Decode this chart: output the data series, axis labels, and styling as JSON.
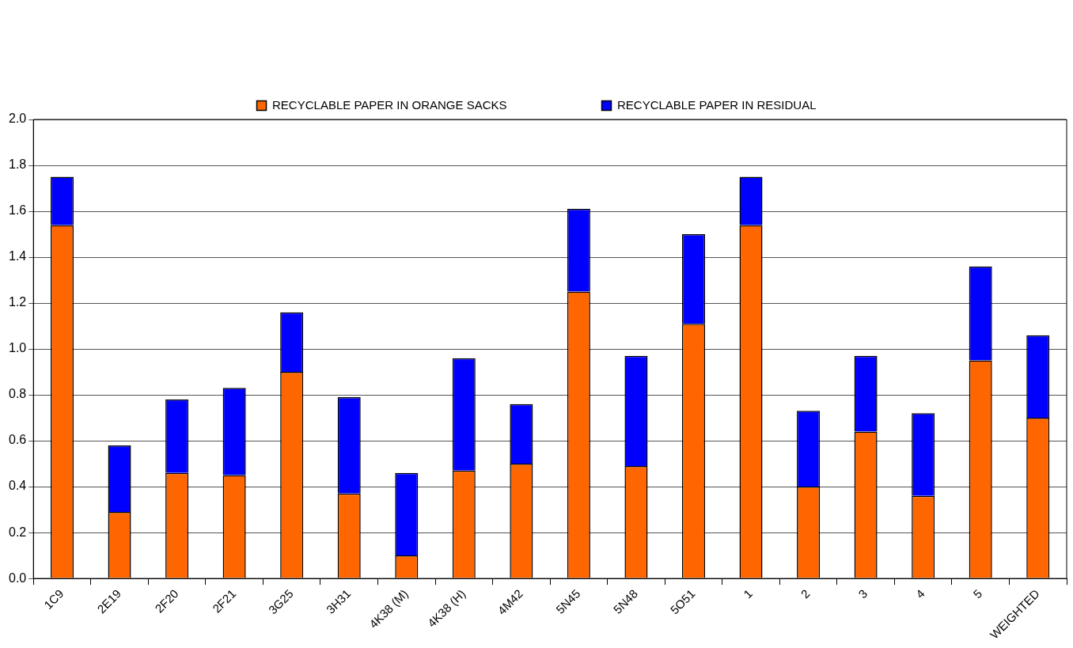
{
  "chart_data": {
    "type": "bar",
    "stacked": true,
    "categories": [
      "1C9",
      "2E19",
      "2F20",
      "2F21",
      "3G25",
      "3H31",
      "4K38 (M)",
      "4K38 (H)",
      "4M42",
      "5N45",
      "5N48",
      "5O51",
      "1",
      "2",
      "3",
      "4",
      "5",
      "WEIGHTED"
    ],
    "series": [
      {
        "name": "RECYCLABLE PAPER IN ORANGE SACKS",
        "color": "#ff6600",
        "values": [
          1.54,
          0.29,
          0.46,
          0.45,
          0.9,
          0.37,
          0.1,
          0.47,
          0.5,
          1.25,
          0.49,
          1.11,
          1.54,
          0.4,
          0.64,
          0.36,
          0.95,
          0.7
        ]
      },
      {
        "name": "RECYCLABLE PAPER IN RESIDUAL",
        "color": "#0000ff",
        "values": [
          0.21,
          0.29,
          0.32,
          0.38,
          0.26,
          0.42,
          0.36,
          0.49,
          0.26,
          0.36,
          0.48,
          0.39,
          0.21,
          0.33,
          0.33,
          0.36,
          0.41,
          0.36
        ]
      }
    ],
    "ylim": [
      0,
      2.0
    ],
    "yticks": [
      {
        "value": 0,
        "label": "0.0"
      },
      0.2,
      0.4,
      0.6,
      0.8,
      {
        "value": 1,
        "label": "1.0"
      },
      1.2,
      1.4,
      1.6,
      1.8,
      {
        "value": 2,
        "label": "2.0"
      }
    ],
    "grid": "y",
    "legend": "top"
  }
}
